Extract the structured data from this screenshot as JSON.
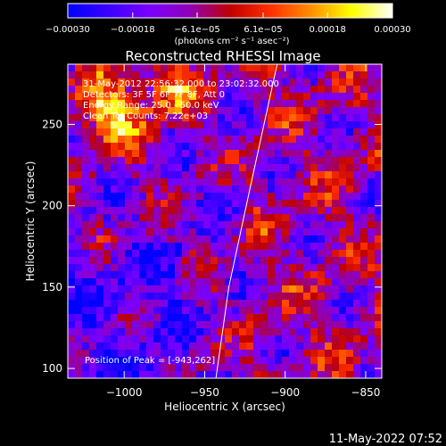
{
  "chart_data": {
    "type": "heatmap",
    "title": "Reconstructed RHESSI Image",
    "xlabel": "Heliocentric X (arcsec)",
    "ylabel": "Heliocentric Y (arcsec)",
    "xlim": [
      -1035,
      -840
    ],
    "ylim": [
      94,
      287
    ],
    "x_ticks": [
      -1000,
      -950,
      -900,
      -850
    ],
    "x_tick_labels": [
      "−1000",
      "−950",
      "−900",
      "−850"
    ],
    "y_ticks": [
      100,
      150,
      200,
      250
    ],
    "y_tick_labels": [
      "100",
      "150",
      "200",
      "250"
    ],
    "colorbar": {
      "range": [
        -0.0003,
        0.0003
      ],
      "ticks": [
        -0.0003,
        -0.00018,
        -6.1e-05,
        6.1e-05,
        0.00018,
        0.0003
      ],
      "tick_labels": [
        "−0.00030",
        "−0.00018",
        "−6.1e−05",
        "6.1e−05",
        "0.00018",
        "0.00030"
      ],
      "units_label": "(photons cm⁻² s⁻¹ asec⁻²)",
      "colormap": [
        "#0000ff",
        "#3a00ff",
        "#7a00ff",
        "#9000b8",
        "#c00000",
        "#ff3000",
        "#ff9000",
        "#ffff00",
        "#ffffff"
      ]
    },
    "annotations": [
      "31-May-2012 22:56:32.000 to 23:02:32.000",
      "Detectors: 3F 5F 6F 7F 8F, Att 0",
      "Energy Range: 25.0 - 50.0 keV",
      "Clean    Tot Counts: 7.22e+03"
    ],
    "peak_label": "Position of Peak = [-943,262]",
    "peak": {
      "x": -943,
      "y": 262
    },
    "limb_curve": [
      [
        -943,
        94
      ],
      [
        -935,
        150
      ],
      [
        -922,
        210
      ],
      [
        -905,
        287
      ]
    ],
    "grid": false
  },
  "footer": {
    "timestamp": "11-May-2022 07:52"
  }
}
